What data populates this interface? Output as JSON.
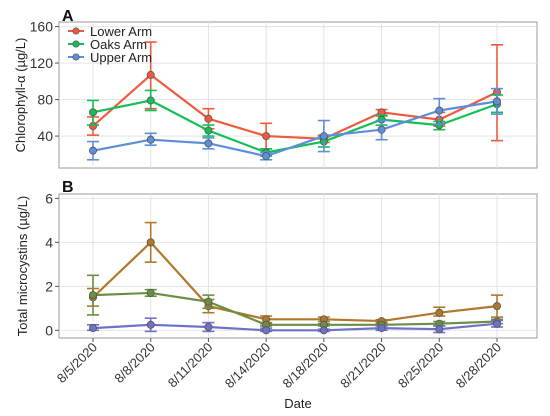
{
  "chart_data": [
    {
      "panel_label": "A",
      "type": "line",
      "ylabel": "Chlorophyll-α (µg/L)",
      "ylim": [
        5,
        165
      ],
      "yticks": [
        40,
        80,
        120,
        160
      ],
      "grid": true,
      "legend_position": "top-left",
      "series": [
        {
          "name": "Lower Arm",
          "color": "#f05a3e",
          "values": [
            51,
            107,
            59,
            40,
            37,
            66,
            58,
            88
          ],
          "error": [
            [
              41,
              61
            ],
            [
              70,
              143
            ],
            [
              48,
              70
            ],
            [
              26,
              54
            ],
            [
              33,
              41
            ],
            [
              62,
              69
            ],
            [
              51,
              66
            ],
            [
              35,
              140
            ]
          ]
        },
        {
          "name": "Oaks Arm",
          "color": "#13be57",
          "values": [
            66,
            79,
            46,
            22,
            34,
            58,
            52,
            75
          ],
          "error": [
            [
              52,
              79
            ],
            [
              68,
              90
            ],
            [
              40,
              52
            ],
            [
              18,
              26
            ],
            [
              28,
              40
            ],
            [
              52,
              63
            ],
            [
              47,
              56
            ],
            [
              66,
              85
            ]
          ]
        },
        {
          "name": "Upper Arm",
          "color": "#5b8fdb",
          "values": [
            24,
            36,
            32,
            18,
            40,
            47,
            68,
            78
          ],
          "error": [
            [
              14,
              34
            ],
            [
              30,
              43
            ],
            [
              26,
              38
            ],
            [
              14,
              22
            ],
            [
              23,
              57
            ],
            [
              36,
              57
            ],
            [
              53,
              81
            ],
            [
              64,
              92
            ]
          ]
        }
      ]
    },
    {
      "panel_label": "B",
      "type": "line",
      "xlabel": "Date",
      "ylabel": "Total microcystins (µg/L)",
      "ylim": [
        -0.35,
        6.2
      ],
      "yticks": [
        0,
        2,
        4,
        6
      ],
      "grid": true,
      "categories": [
        "8/5/2020",
        "8/8/2020",
        "8/11/2020",
        "8/14/2020",
        "8/18/2020",
        "8/21/2020",
        "8/25/2020",
        "8/28/2020"
      ],
      "series": [
        {
          "name": "Lower Arm",
          "color": "#b1772b",
          "values": [
            1.5,
            4.0,
            1.1,
            0.5,
            0.5,
            0.42,
            0.8,
            1.1
          ],
          "error": [
            [
              1.1,
              1.9
            ],
            [
              3.1,
              4.9
            ],
            [
              0.8,
              1.4
            ],
            [
              0.35,
              0.65
            ],
            [
              0.4,
              0.6
            ],
            [
              0.36,
              0.48
            ],
            [
              0.65,
              1.05
            ],
            [
              0.6,
              1.6
            ]
          ]
        },
        {
          "name": "Oaks Arm",
          "color": "#6a8e44",
          "values": [
            1.6,
            1.7,
            1.3,
            0.25,
            0.25,
            0.25,
            0.3,
            0.4
          ],
          "error": [
            [
              0.7,
              2.5
            ],
            [
              1.55,
              1.85
            ],
            [
              1.0,
              1.6
            ],
            [
              0.2,
              0.3
            ],
            [
              0.2,
              0.3
            ],
            [
              0.2,
              0.3
            ],
            [
              0.2,
              0.4
            ],
            [
              0.3,
              0.5
            ]
          ]
        },
        {
          "name": "Upper Arm",
          "color": "#6f70c8",
          "values": [
            0.1,
            0.25,
            0.15,
            0.0,
            0.0,
            0.1,
            0.05,
            0.3
          ],
          "error": [
            [
              0.0,
              0.25
            ],
            [
              -0.05,
              0.55
            ],
            [
              -0.05,
              0.35
            ],
            [
              -0.05,
              0.1
            ],
            [
              -0.05,
              0.05
            ],
            [
              0.0,
              0.2
            ],
            [
              -0.1,
              0.2
            ],
            [
              0.15,
              0.45
            ]
          ]
        }
      ]
    }
  ]
}
